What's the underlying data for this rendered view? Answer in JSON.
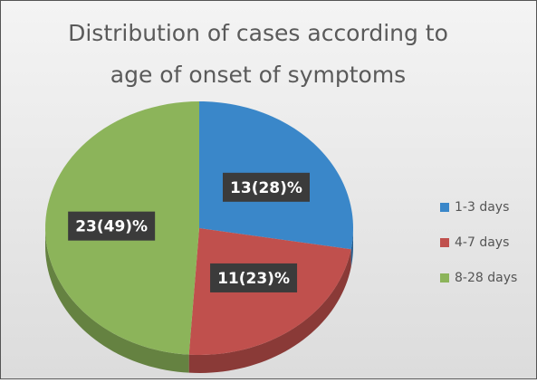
{
  "chart_data": {
    "type": "pie",
    "title": [
      "Distribution of cases according to",
      "age of onset of symptoms"
    ],
    "categories": [
      "1-3 days",
      "4-7 days",
      "8-28 days"
    ],
    "values": [
      13,
      11,
      23
    ],
    "value_labels": [
      "13(28)%",
      "11(23)%",
      "23(49)%"
    ],
    "colors": [
      "#3a87c9",
      "#c0504d",
      "#8cb45a"
    ],
    "legend": "right"
  }
}
